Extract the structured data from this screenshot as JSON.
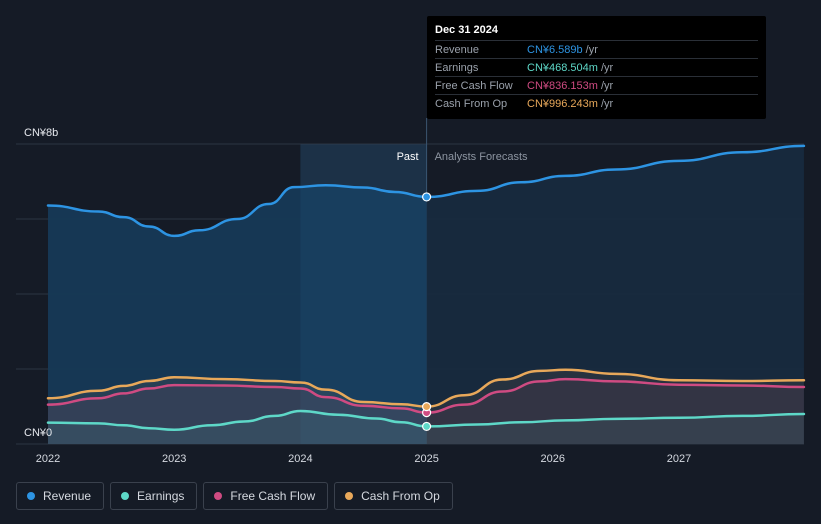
{
  "chart_data": {
    "type": "line",
    "x_ticks": [
      "2022",
      "2023",
      "2024",
      "2025",
      "2026",
      "2027"
    ],
    "y_labels": {
      "top": "CN¥8b",
      "bottom": "CN¥0"
    },
    "ylim": [
      0,
      8
    ],
    "xlim": [
      2021.77,
      2027.99
    ],
    "split_x": 2025.0,
    "past_start_x": 2024.0,
    "past_label": "Past",
    "forecast_label": "Analysts Forecasts",
    "series": [
      {
        "name": "Revenue",
        "color": "#2d94e3",
        "points": [
          [
            2022.0,
            6.36
          ],
          [
            2022.4,
            6.2
          ],
          [
            2022.6,
            6.05
          ],
          [
            2022.8,
            5.8
          ],
          [
            2023.0,
            5.55
          ],
          [
            2023.2,
            5.7
          ],
          [
            2023.5,
            6.0
          ],
          [
            2023.75,
            6.4
          ],
          [
            2023.95,
            6.85
          ],
          [
            2024.2,
            6.9
          ],
          [
            2024.5,
            6.84
          ],
          [
            2024.75,
            6.72
          ],
          [
            2025.0,
            6.589
          ],
          [
            2025.4,
            6.75
          ],
          [
            2025.75,
            6.98
          ],
          [
            2026.1,
            7.15
          ],
          [
            2026.5,
            7.32
          ],
          [
            2027.0,
            7.55
          ],
          [
            2027.5,
            7.78
          ],
          [
            2027.99,
            7.95
          ]
        ]
      },
      {
        "name": "Earnings",
        "color": "#5ed8c8",
        "points": [
          [
            2022.0,
            0.57
          ],
          [
            2022.4,
            0.55
          ],
          [
            2022.6,
            0.5
          ],
          [
            2022.8,
            0.42
          ],
          [
            2023.0,
            0.38
          ],
          [
            2023.3,
            0.5
          ],
          [
            2023.55,
            0.6
          ],
          [
            2023.8,
            0.75
          ],
          [
            2024.0,
            0.88
          ],
          [
            2024.3,
            0.78
          ],
          [
            2024.6,
            0.68
          ],
          [
            2024.8,
            0.58
          ],
          [
            2025.0,
            0.4685
          ],
          [
            2025.4,
            0.52
          ],
          [
            2025.75,
            0.58
          ],
          [
            2026.1,
            0.63
          ],
          [
            2026.5,
            0.67
          ],
          [
            2027.0,
            0.7
          ],
          [
            2027.5,
            0.75
          ],
          [
            2027.99,
            0.8
          ]
        ]
      },
      {
        "name": "Free Cash Flow",
        "color": "#cf4b82",
        "points": [
          [
            2022.0,
            1.05
          ],
          [
            2022.4,
            1.22
          ],
          [
            2022.6,
            1.35
          ],
          [
            2022.8,
            1.48
          ],
          [
            2023.0,
            1.57
          ],
          [
            2023.4,
            1.56
          ],
          [
            2023.8,
            1.52
          ],
          [
            2024.0,
            1.48
          ],
          [
            2024.2,
            1.25
          ],
          [
            2024.5,
            1.02
          ],
          [
            2024.8,
            0.95
          ],
          [
            2025.0,
            0.836
          ],
          [
            2025.3,
            1.05
          ],
          [
            2025.6,
            1.4
          ],
          [
            2025.9,
            1.67
          ],
          [
            2026.1,
            1.73
          ],
          [
            2026.5,
            1.67
          ],
          [
            2027.0,
            1.58
          ],
          [
            2027.5,
            1.56
          ],
          [
            2027.99,
            1.52
          ]
        ]
      },
      {
        "name": "Cash From Op",
        "color": "#e8a85a",
        "points": [
          [
            2022.0,
            1.22
          ],
          [
            2022.4,
            1.42
          ],
          [
            2022.6,
            1.55
          ],
          [
            2022.8,
            1.68
          ],
          [
            2023.0,
            1.78
          ],
          [
            2023.4,
            1.73
          ],
          [
            2023.8,
            1.68
          ],
          [
            2024.0,
            1.64
          ],
          [
            2024.2,
            1.45
          ],
          [
            2024.5,
            1.12
          ],
          [
            2024.8,
            1.06
          ],
          [
            2025.0,
            0.996
          ],
          [
            2025.3,
            1.3
          ],
          [
            2025.6,
            1.72
          ],
          [
            2025.9,
            1.95
          ],
          [
            2026.1,
            1.98
          ],
          [
            2026.5,
            1.87
          ],
          [
            2027.0,
            1.7
          ],
          [
            2027.5,
            1.68
          ],
          [
            2027.99,
            1.7
          ]
        ]
      }
    ]
  },
  "tooltip": {
    "date": "Dec 31 2024",
    "rows": [
      {
        "name": "Revenue",
        "value": "CN¥6.589b",
        "unit": "/yr",
        "color": "#2d94e3"
      },
      {
        "name": "Earnings",
        "value": "CN¥468.504m",
        "unit": "/yr",
        "color": "#5ed8c8"
      },
      {
        "name": "Free Cash Flow",
        "value": "CN¥836.153m",
        "unit": "/yr",
        "color": "#cf4b82"
      },
      {
        "name": "Cash From Op",
        "value": "CN¥996.243m",
        "unit": "/yr",
        "color": "#e8a85a"
      }
    ]
  },
  "legend": [
    {
      "label": "Revenue",
      "color": "#2d94e3"
    },
    {
      "label": "Earnings",
      "color": "#5ed8c8"
    },
    {
      "label": "Free Cash Flow",
      "color": "#cf4b82"
    },
    {
      "label": "Cash From Op",
      "color": "#e8a85a"
    }
  ]
}
